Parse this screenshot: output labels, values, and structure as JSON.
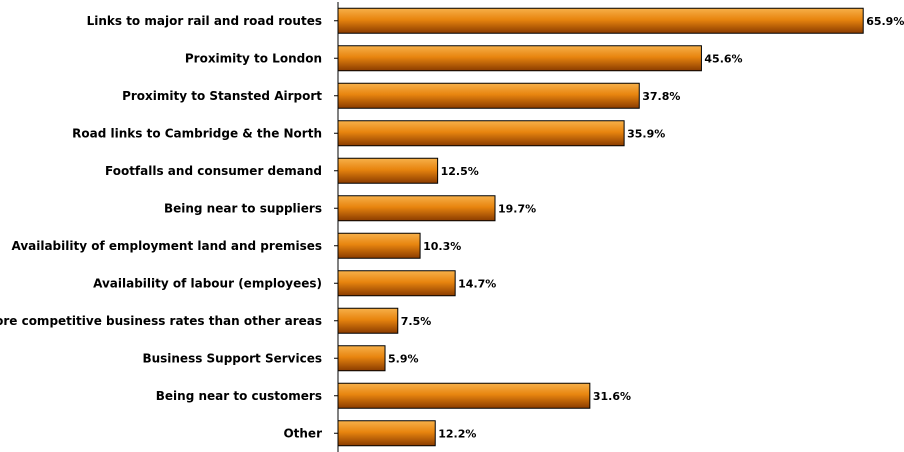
{
  "chart_data": {
    "type": "bar",
    "orientation": "horizontal",
    "categories": [
      "Links to major rail and road routes",
      "Proximity to London",
      "Proximity to Stansted Airport",
      "Road links to Cambridge & the North",
      "Footfalls and consumer demand",
      "Being near to suppliers",
      "Availability of employment land and premises",
      "Availability of labour (employees)",
      "More competitive business rates than other areas",
      "Business Support Services",
      "Being near to customers",
      "Other"
    ],
    "values": [
      65.9,
      45.6,
      37.8,
      35.9,
      12.5,
      19.7,
      10.3,
      14.7,
      7.5,
      5.9,
      31.6,
      12.2
    ],
    "value_labels": [
      "65.9%",
      "45.6%",
      "37.8%",
      "35.9%",
      "12.5%",
      "19.7%",
      "10.3%",
      "14.7%",
      "7.5%",
      "5.9%",
      "31.6%",
      "12.2%"
    ],
    "xlim": [
      0,
      66
    ],
    "grid": false,
    "legend": "none",
    "bar_color": "#e8850f"
  }
}
